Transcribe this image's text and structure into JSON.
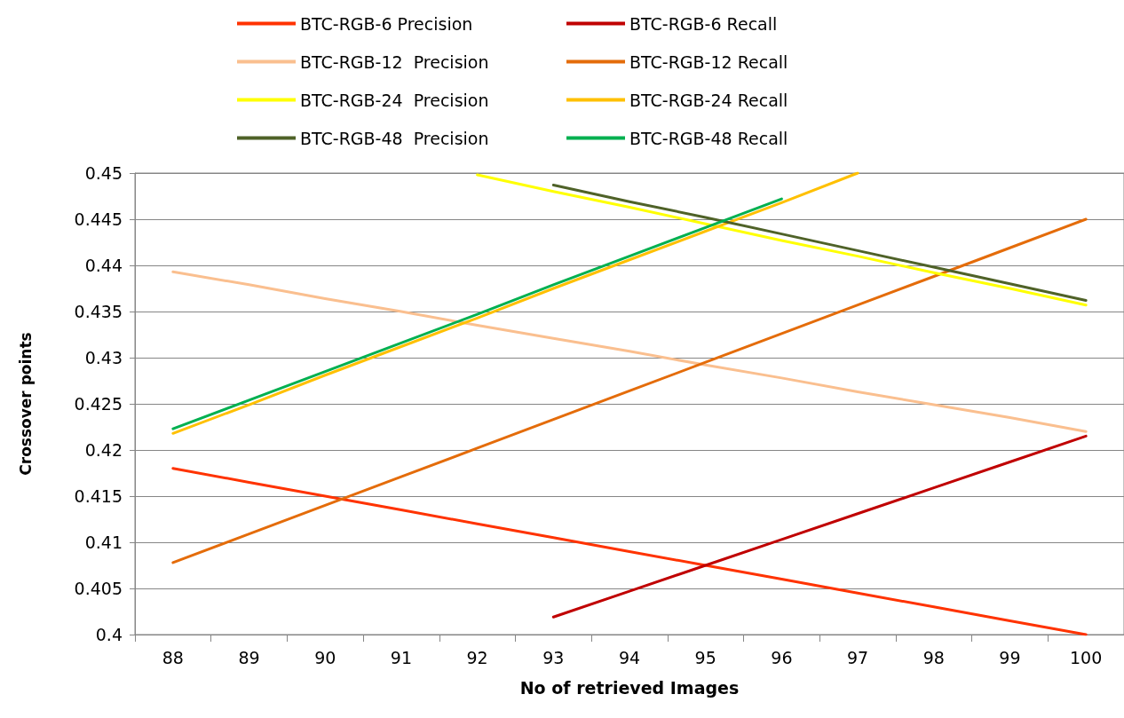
{
  "chart_data": {
    "type": "line",
    "xlabel": "No of retrieved Images",
    "ylabel": "Crossover points",
    "categories": [
      "88",
      "89",
      "90",
      "91",
      "92",
      "93",
      "94",
      "95",
      "96",
      "97",
      "98",
      "99",
      "100"
    ],
    "ylim": [
      0.4,
      0.45
    ],
    "yticks": [
      0.4,
      0.405,
      0.41,
      0.415,
      0.42,
      0.425,
      0.43,
      0.435,
      0.44,
      0.445,
      0.45
    ],
    "grid": "y",
    "legend": "top",
    "marker": "none",
    "line_style": "solid",
    "series": [
      {
        "name": "BTC-RGB-6 Precision",
        "color": "#ff3300",
        "values": [
          0.418,
          0.4165,
          0.415,
          0.4135,
          0.412,
          0.4105,
          0.409,
          0.4075,
          0.406,
          0.4045,
          0.403,
          0.4015,
          0.4
        ]
      },
      {
        "name": "BTC-RGB-6 Recall",
        "color": "#c00000",
        "values": [
          null,
          null,
          null,
          null,
          null,
          0.4019,
          0.4047,
          0.4075,
          0.4103,
          0.4131,
          0.4159,
          0.4187,
          0.4215
        ]
      },
      {
        "name": "BTC-RGB-12  Precision",
        "color": "#fabf8f",
        "values": [
          0.4393,
          0.4379,
          0.4364,
          0.435,
          0.4335,
          0.4321,
          0.4307,
          0.4292,
          0.4278,
          0.4263,
          0.4249,
          0.4235,
          0.422
        ]
      },
      {
        "name": "BTC-RGB-12 Recall",
        "color": "#e46c0a",
        "values": [
          0.4078,
          0.4109,
          0.414,
          0.4171,
          0.4202,
          0.4233,
          0.4264,
          0.4295,
          0.4326,
          0.4357,
          0.4388,
          0.4419,
          0.445
        ]
      },
      {
        "name": "BTC-RGB-24  Precision",
        "color": "#ffff00",
        "values": [
          null,
          null,
          null,
          null,
          0.4498,
          0.448,
          0.4463,
          0.4445,
          0.4427,
          0.441,
          0.4392,
          0.4375,
          0.4357
        ]
      },
      {
        "name": "BTC-RGB-24 Recall",
        "color": "#ffc000",
        "values": [
          0.4218,
          0.4249,
          0.4281,
          0.4312,
          0.4343,
          0.4375,
          0.4406,
          0.4437,
          0.4468,
          0.45,
          null,
          null,
          null
        ]
      },
      {
        "name": "BTC-RGB-48  Precision",
        "color": "#4f6228",
        "values": [
          null,
          null,
          null,
          null,
          null,
          0.4487,
          0.4469,
          0.4452,
          0.4434,
          0.4416,
          0.4398,
          0.438,
          0.4362
        ]
      },
      {
        "name": "BTC-RGB-48 Recall",
        "color": "#00b050",
        "values": [
          0.4223,
          0.4254,
          0.4285,
          0.4316,
          0.4347,
          0.4379,
          0.441,
          0.4441,
          0.4472,
          null,
          null,
          null,
          null
        ]
      }
    ]
  }
}
